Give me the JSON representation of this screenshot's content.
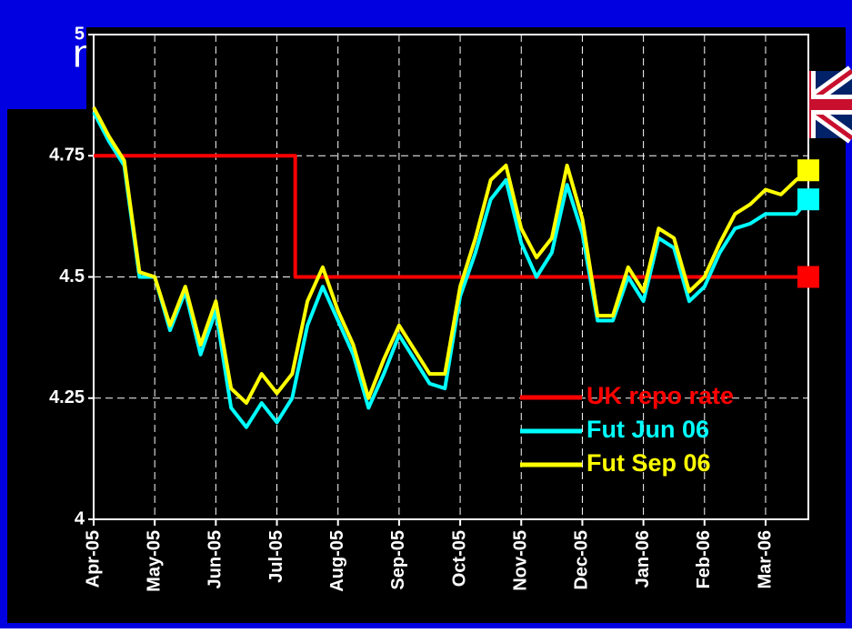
{
  "header": {
    "title_fragment": "n"
  },
  "chart_data": {
    "type": "line",
    "x": [
      0,
      0.25,
      0.5,
      0.75,
      1,
      1.25,
      1.5,
      1.75,
      2,
      2.25,
      2.5,
      2.75,
      3,
      3.25,
      3.5,
      3.75,
      4,
      4.25,
      4.5,
      4.75,
      5,
      5.25,
      5.5,
      5.75,
      6,
      6.25,
      6.5,
      6.75,
      7,
      7.25,
      7.5,
      7.75,
      8,
      8.25,
      8.5,
      8.75,
      9,
      9.25,
      9.5,
      9.75,
      10,
      10.25,
      10.5,
      10.75,
      11,
      11.25,
      11.5,
      11.7
    ],
    "series": [
      {
        "name": "UK repo rate",
        "color": "#ff0000",
        "x": [
          0,
          3.3,
          3.3,
          11.7
        ],
        "values": [
          4.75,
          4.75,
          4.5,
          4.5
        ]
      },
      {
        "name": "Fut Jun 06",
        "color": "#00ffff",
        "values": [
          4.84,
          4.78,
          4.73,
          4.5,
          4.5,
          4.39,
          4.47,
          4.34,
          4.43,
          4.23,
          4.19,
          4.24,
          4.2,
          4.25,
          4.4,
          4.48,
          4.41,
          4.34,
          4.23,
          4.3,
          4.38,
          4.33,
          4.28,
          4.27,
          4.46,
          4.55,
          4.66,
          4.7,
          4.57,
          4.5,
          4.55,
          4.69,
          4.59,
          4.41,
          4.41,
          4.5,
          4.45,
          4.58,
          4.56,
          4.45,
          4.48,
          4.55,
          4.6,
          4.61,
          4.63,
          4.63,
          4.63,
          4.66
        ]
      },
      {
        "name": "Fut Sep 06",
        "color": "#ffff00",
        "values": [
          4.85,
          4.79,
          4.74,
          4.51,
          4.5,
          4.4,
          4.48,
          4.36,
          4.45,
          4.27,
          4.24,
          4.3,
          4.26,
          4.3,
          4.45,
          4.52,
          4.43,
          4.36,
          4.25,
          4.33,
          4.4,
          4.35,
          4.3,
          4.3,
          4.48,
          4.58,
          4.7,
          4.73,
          4.6,
          4.54,
          4.58,
          4.73,
          4.62,
          4.42,
          4.42,
          4.52,
          4.47,
          4.6,
          4.58,
          4.47,
          4.5,
          4.57,
          4.63,
          4.65,
          4.68,
          4.67,
          4.7,
          4.72
        ]
      }
    ],
    "xlim": [
      0,
      11.7
    ],
    "xticks": [
      {
        "value": 0,
        "label": "Apr-05"
      },
      {
        "value": 1,
        "label": "May-05"
      },
      {
        "value": 2,
        "label": "Jun-05"
      },
      {
        "value": 3,
        "label": "Jul-05"
      },
      {
        "value": 4,
        "label": "Aug-05"
      },
      {
        "value": 5,
        "label": "Sep-05"
      },
      {
        "value": 6,
        "label": "Oct-05"
      },
      {
        "value": 7,
        "label": "Nov-05"
      },
      {
        "value": 8,
        "label": "Dec-05"
      },
      {
        "value": 9,
        "label": "Jan-06"
      },
      {
        "value": 10,
        "label": "Feb-06"
      },
      {
        "value": 11,
        "label": "Mar-06"
      }
    ],
    "ylim": [
      4,
      5
    ],
    "yticks": [
      4,
      4.25,
      4.5,
      4.75,
      5
    ],
    "grid": true,
    "legend": "lower right"
  }
}
